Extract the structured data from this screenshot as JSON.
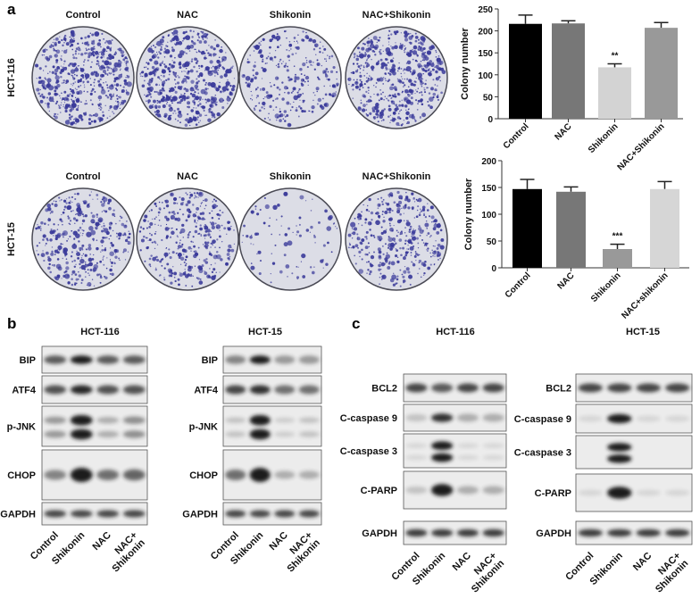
{
  "panel_labels": {
    "a": "a",
    "b": "b",
    "c": "c"
  },
  "panel_a": {
    "rows": [
      {
        "cell_line": "HCT-116",
        "treatments": [
          "Control",
          "NAC",
          "Shikonin",
          "NAC+Shikonin"
        ]
      },
      {
        "cell_line": "HCT-15",
        "treatments": [
          "Control",
          "NAC",
          "Shikonin",
          "NAC+Shikonin"
        ]
      }
    ],
    "colony_color": "#3a3a9a"
  },
  "chart_data": [
    {
      "type": "bar",
      "title": "",
      "xlabel": "",
      "ylabel": "Colony number",
      "categories": [
        "Control",
        "NAC",
        "Shikonin",
        "NAC+Shikonin"
      ],
      "values": [
        216,
        217,
        117,
        207
      ],
      "errors": [
        20,
        6,
        8,
        12
      ],
      "annotations": [
        "",
        "",
        "**",
        ""
      ],
      "ylim": [
        0,
        250
      ],
      "yticks": [
        0,
        50,
        100,
        150,
        200,
        250
      ],
      "colors": [
        "#000000",
        "#777777",
        "#d3d3d3",
        "#999999"
      ]
    },
    {
      "type": "bar",
      "title": "",
      "xlabel": "",
      "ylabel": "Colony number",
      "categories": [
        "Control",
        "NAC",
        "Shikonin",
        "NAC+shikonin"
      ],
      "values": [
        147,
        142,
        35,
        147
      ],
      "errors": [
        18,
        9,
        9,
        14
      ],
      "annotations": [
        "",
        "",
        "***",
        ""
      ],
      "ylim": [
        0,
        200
      ],
      "yticks": [
        0,
        50,
        100,
        150,
        200
      ],
      "colors": [
        "#000000",
        "#777777",
        "#999999",
        "#d6d6d6"
      ]
    }
  ],
  "blots": {
    "b": [
      {
        "cell_line": "HCT-116",
        "rows": [
          {
            "label": "BIP",
            "intensity": [
              0.7,
              1,
              0.7,
              0.7
            ]
          },
          {
            "label": "ATF4",
            "intensity": [
              0.75,
              0.95,
              0.75,
              0.75
            ]
          },
          {
            "label": "p-JNK",
            "intensity": [
              0.4,
              1,
              0.3,
              0.45
            ],
            "double": true
          },
          {
            "label": "CHOP",
            "intensity": [
              0.5,
              1,
              0.6,
              0.65
            ]
          },
          {
            "label": "GAPDH",
            "intensity": [
              0.8,
              0.8,
              0.8,
              0.8
            ]
          }
        ]
      },
      {
        "cell_line": "HCT-15",
        "rows": [
          {
            "label": "BIP",
            "intensity": [
              0.5,
              1,
              0.4,
              0.4
            ]
          },
          {
            "label": "ATF4",
            "intensity": [
              0.8,
              0.9,
              0.6,
              0.6
            ]
          },
          {
            "label": "p-JNK",
            "intensity": [
              0.2,
              1,
              0.15,
              0.2
            ],
            "double": true
          },
          {
            "label": "CHOP",
            "intensity": [
              0.6,
              1,
              0.3,
              0.3
            ]
          },
          {
            "label": "GAPDH",
            "intensity": [
              0.8,
              0.8,
              0.8,
              0.8
            ]
          }
        ]
      }
    ],
    "c": [
      {
        "cell_line": "HCT-116",
        "rows": [
          {
            "label": "BCL2",
            "intensity": [
              0.8,
              0.7,
              0.8,
              0.8
            ]
          },
          {
            "label": "C-caspase 9",
            "intensity": [
              0.2,
              0.9,
              0.3,
              0.3
            ]
          },
          {
            "label": "C-caspase 3",
            "intensity": [
              0.1,
              1,
              0.1,
              0.1
            ],
            "double": true
          },
          {
            "label": "C-PARP",
            "intensity": [
              0.2,
              1,
              0.3,
              0.3
            ]
          },
          {
            "label": "GAPDH",
            "intensity": [
              0.85,
              0.85,
              0.85,
              0.85
            ]
          }
        ]
      },
      {
        "cell_line": "HCT-15",
        "rows": [
          {
            "label": "BCL2",
            "intensity": [
              0.8,
              0.8,
              0.8,
              0.8
            ]
          },
          {
            "label": "C-caspase 9",
            "intensity": [
              0.1,
              1,
              0.1,
              0.1
            ]
          },
          {
            "label": "C-caspase 3",
            "intensity": [
              0,
              1,
              0,
              0
            ],
            "double": true
          },
          {
            "label": "C-PARP",
            "intensity": [
              0.1,
              1,
              0.1,
              0.1
            ]
          },
          {
            "label": "GAPDH",
            "intensity": [
              0.85,
              0.85,
              0.85,
              0.85
            ]
          }
        ]
      }
    ]
  },
  "lane_labels": [
    [
      "Control"
    ],
    [
      "Shikonin"
    ],
    [
      "NAC"
    ],
    [
      "NAC+",
      "Shikonin"
    ]
  ]
}
